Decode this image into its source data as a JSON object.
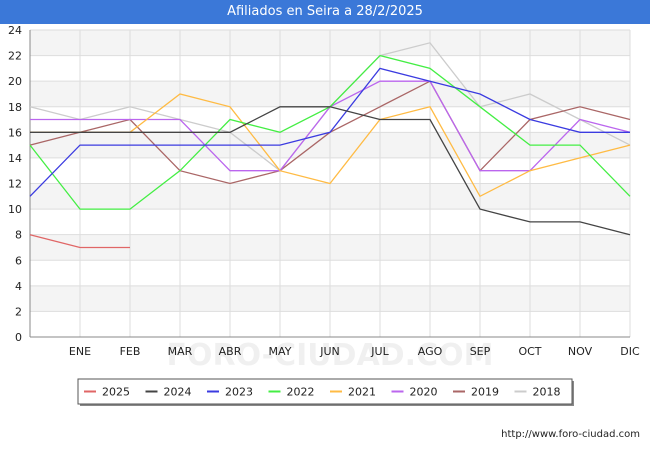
{
  "title": "Afiliados en Seira a 28/2/2025",
  "watermark": "FORO-CIUDAD.COM",
  "footer_url": "http://www.foro-ciudad.com",
  "chart_data": {
    "type": "line",
    "title": "Afiliados en Seira a 28/2/2025",
    "xlabel": "",
    "ylabel": "",
    "categories": [
      "",
      "ENE",
      "FEB",
      "MAR",
      "ABR",
      "MAY",
      "JUN",
      "JUL",
      "AGO",
      "SEP",
      "OCT",
      "NOV",
      "DIC"
    ],
    "ylim": [
      0,
      24
    ],
    "yticks": [
      0,
      2,
      4,
      6,
      8,
      10,
      12,
      14,
      16,
      18,
      20,
      22,
      24
    ],
    "grid": true,
    "legend_position": "bottom",
    "series": [
      {
        "name": "2025",
        "color": "#e06666",
        "values": [
          8,
          7,
          7,
          null,
          null,
          null,
          null,
          null,
          null,
          null,
          null,
          null,
          null
        ]
      },
      {
        "name": "2024",
        "color": "#444444",
        "values": [
          16,
          16,
          16,
          16,
          16,
          18,
          18,
          17,
          17,
          10,
          9,
          9,
          8
        ]
      },
      {
        "name": "2023",
        "color": "#3b3be0",
        "values": [
          11,
          15,
          15,
          15,
          15,
          15,
          16,
          21,
          20,
          19,
          17,
          16,
          16
        ]
      },
      {
        "name": "2022",
        "color": "#44ee44",
        "values": [
          15,
          10,
          10,
          13,
          17,
          16,
          18,
          22,
          21,
          18,
          15,
          15,
          11
        ]
      },
      {
        "name": "2021",
        "color": "#ffbb44",
        "values": [
          16,
          16,
          16,
          19,
          18,
          13,
          12,
          17,
          18,
          11,
          13,
          14,
          15
        ]
      },
      {
        "name": "2020",
        "color": "#bb66ee",
        "values": [
          17,
          17,
          17,
          17,
          13,
          13,
          18,
          20,
          20,
          13,
          13,
          17,
          16
        ]
      },
      {
        "name": "2019",
        "color": "#aa6666",
        "values": [
          15,
          16,
          17,
          13,
          12,
          13,
          16,
          18,
          20,
          13,
          17,
          18,
          17
        ]
      },
      {
        "name": "2018",
        "color": "#cccccc",
        "values": [
          18,
          17,
          18,
          17,
          16,
          13,
          18,
          22,
          23,
          18,
          19,
          17,
          15
        ]
      }
    ]
  }
}
